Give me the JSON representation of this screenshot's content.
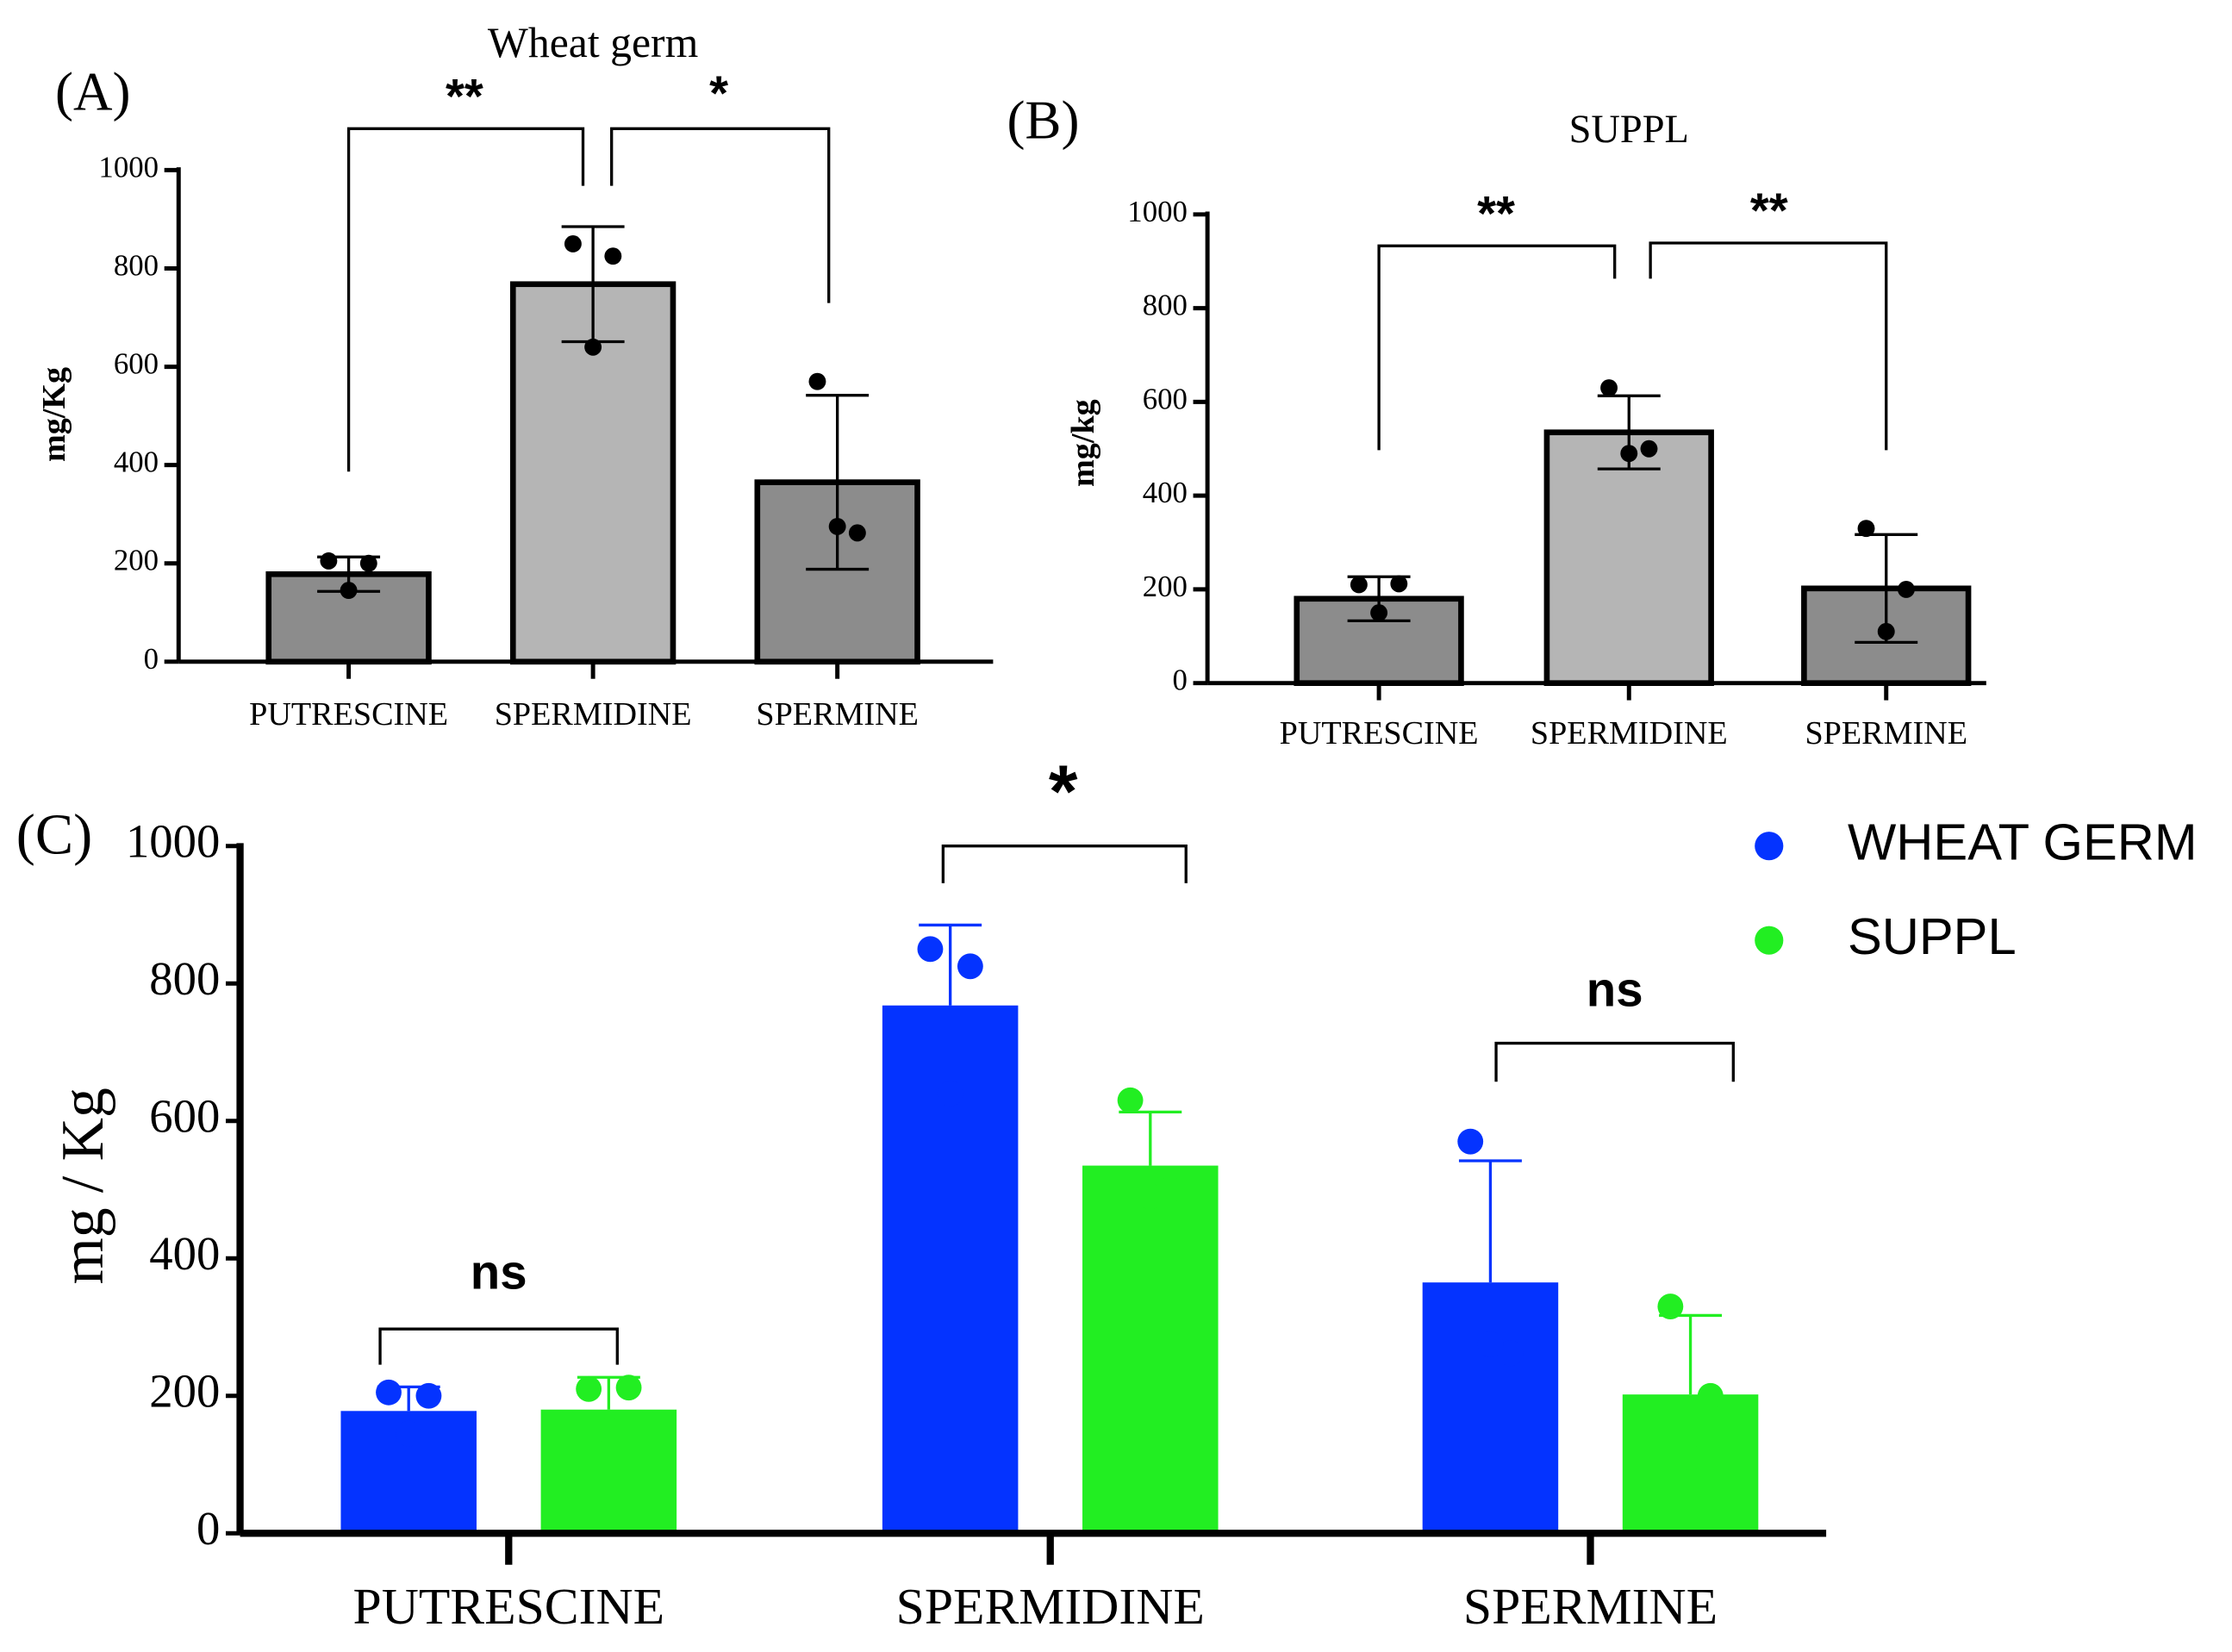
{
  "chart_data": [
    {
      "type": "bar",
      "panel": "(A)",
      "title": "Wheat germ",
      "y_label": "mg/Kg",
      "categories": [
        "PUTRESCINE",
        "SPERMIDINE",
        "SPERMINE"
      ],
      "values": [
        178,
        768,
        365
      ],
      "errors": [
        35,
        117,
        177
      ],
      "points": [
        [
          205,
          200,
          145
        ],
        [
          850,
          825,
          640
        ],
        [
          570,
          262,
          275
        ]
      ],
      "colors": [
        "#8c8c8c",
        "#b5b5b5",
        "#8c8c8c"
      ],
      "ylim": [
        0,
        1000
      ],
      "yticks": [
        0,
        200,
        400,
        600,
        800,
        1000
      ],
      "annotations": [
        "**",
        "*"
      ]
    },
    {
      "type": "bar",
      "panel": "(B)",
      "title": "SUPPL",
      "y_label": "mg/kg",
      "categories": [
        "PUTRESCINE",
        "SPERMIDINE",
        "SPERMINE"
      ],
      "values": [
        180,
        535,
        202
      ],
      "errors": [
        47,
        78,
        115
      ],
      "points": [
        [
          210,
          212,
          150
        ],
        [
          630,
          500,
          490
        ],
        [
          330,
          200,
          110
        ]
      ],
      "colors": [
        "#8c8c8c",
        "#b5b5b5",
        "#8c8c8c"
      ],
      "ylim": [
        0,
        1000
      ],
      "yticks": [
        0,
        200,
        400,
        600,
        800,
        1000
      ],
      "annotations": [
        "**",
        "**"
      ]
    },
    {
      "type": "grouped_bar",
      "panel": "(C)",
      "y_label": "mg / Kg",
      "categories": [
        "PUTRESCINE",
        "SPERMIDINE",
        "SPERMINE"
      ],
      "series": [
        {
          "name": "WHEAT GERM",
          "color": "#0433ff",
          "values": [
            178,
            768,
            365
          ],
          "errors": [
            35,
            117,
            177
          ],
          "points": [
            [
              205,
              200,
              145
            ],
            [
              850,
              825,
              640
            ],
            [
              570,
              262,
              275
            ]
          ]
        },
        {
          "name": "SUPPL",
          "color": "#22ee22",
          "values": [
            180,
            535,
            202
          ],
          "errors": [
            47,
            78,
            115
          ],
          "points": [
            [
              210,
              212,
              150
            ],
            [
              630,
              500,
              490
            ],
            [
              330,
              200,
              110
            ]
          ]
        }
      ],
      "ylim": [
        0,
        1000
      ],
      "yticks": [
        0,
        200,
        400,
        600,
        800,
        1000
      ],
      "annotations": [
        "ns",
        "*",
        "ns"
      ]
    }
  ]
}
